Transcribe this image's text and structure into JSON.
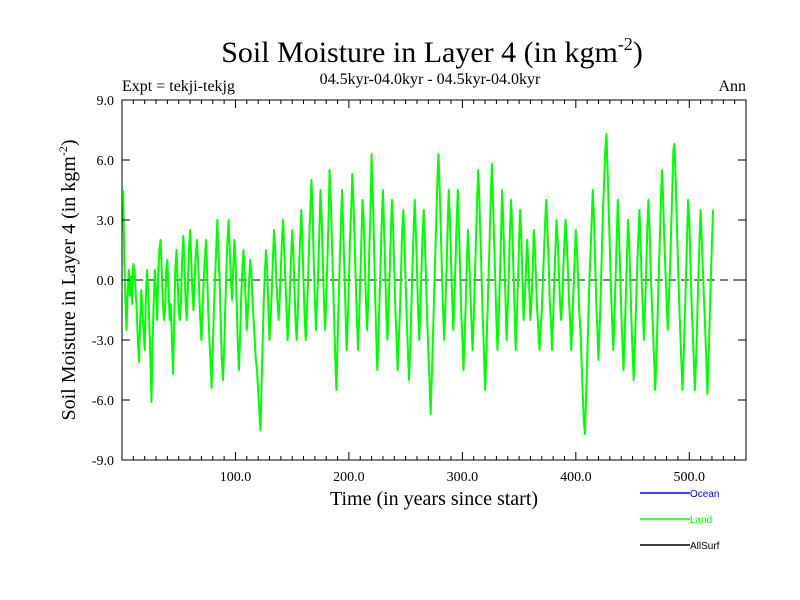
{
  "chart_data": {
    "type": "line",
    "title": "Soil Moisture in Layer 4 (in kgm",
    "title_sup": "-2",
    "title_close": ")",
    "subtitle_left": "Expt = tekji-tekjg",
    "subtitle_center": "04.5kyr-04.0kyr - 04.5kyr-04.0kyr",
    "subtitle_right": "Ann",
    "xlabel": "Time (in years since start)",
    "ylabel": "Soil Moisture in Layer 4 (in kgm",
    "ylabel_sup": "-2",
    "ylabel_close": ")",
    "xlim": [
      0,
      550
    ],
    "ylim": [
      -9,
      9
    ],
    "xticks": [
      100,
      200,
      300,
      400,
      500
    ],
    "xtick_labels": [
      "100.0",
      "200.0",
      "300.0",
      "400.0",
      "500.0"
    ],
    "yticks": [
      -9,
      -6,
      -3,
      0,
      3,
      6,
      9
    ],
    "ytick_labels": [
      "-9.0",
      "-6.0",
      "-3.0",
      "0.0",
      "3.0",
      "6.0",
      "9.0"
    ],
    "zero_line": true,
    "legend_placement": "bottom-right",
    "series": [
      {
        "name": "Ocean",
        "color": "#0000ff",
        "values": []
      },
      {
        "name": "Land",
        "color": "#00ff00",
        "x_start": 1,
        "x_step": 1,
        "values": [
          4.5,
          1.0,
          -1.0,
          -2.5,
          -0.5,
          0.5,
          -0.8,
          0.2,
          -1.2,
          0.8,
          0.5,
          -0.5,
          -1.5,
          -3.0,
          -4.1,
          -2.0,
          -0.5,
          -1.5,
          -2.5,
          -3.5,
          -1.0,
          0.5,
          -0.5,
          -2.0,
          -4.0,
          -6.1,
          -3.0,
          -1.0,
          0.5,
          -0.5,
          -2.0,
          0.5,
          1.5,
          2.0,
          0.5,
          -1.0,
          -2.0,
          -1.5,
          0.5,
          1.0,
          -0.5,
          -2.0,
          -1.2,
          -3.0,
          -4.7,
          -2.0,
          0.5,
          1.5,
          0.0,
          -1.5,
          -2.0,
          -1.0,
          1.0,
          2.2,
          1.0,
          -1.0,
          -2.0,
          -0.5,
          1.5,
          2.5,
          1.0,
          -0.5,
          -1.5,
          0.0,
          1.2,
          2.0,
          1.0,
          -0.5,
          -2.0,
          -3.0,
          -1.5,
          0.0,
          1.0,
          2.0,
          0.5,
          -1.5,
          -3.0,
          -4.0,
          -5.4,
          -3.5,
          -1.5,
          0.0,
          1.5,
          3.0,
          1.5,
          0.0,
          -2.0,
          -4.0,
          -5.0,
          -3.5,
          -1.5,
          0.5,
          2.0,
          3.0,
          1.5,
          0.0,
          -1.0,
          0.5,
          2.0,
          1.0,
          -1.0,
          -3.0,
          -4.5,
          -3.0,
          -1.0,
          0.5,
          1.5,
          0.5,
          -1.0,
          -2.5,
          -1.5,
          0.0,
          1.0,
          0.5,
          -1.0,
          -2.0,
          -3.0,
          -4.0,
          -4.5,
          -5.5,
          -6.5,
          -7.5,
          -5.5,
          -3.0,
          -1.0,
          0.5,
          1.5,
          0.5,
          -1.5,
          -3.0,
          -2.0,
          -0.5,
          1.0,
          2.5,
          1.5,
          0.0,
          -1.0,
          -2.0,
          -1.0,
          0.5,
          2.0,
          3.0,
          1.5,
          0.0,
          -1.5,
          -3.0,
          -2.0,
          -0.5,
          1.0,
          2.5,
          1.5,
          -0.5,
          -2.0,
          -3.0,
          -1.5,
          0.5,
          2.0,
          3.5,
          2.0,
          0.0,
          -2.0,
          -3.0,
          -1.5,
          0.0,
          2.0,
          3.5,
          5.0,
          3.5,
          1.0,
          -1.0,
          -2.5,
          -1.0,
          0.5,
          2.5,
          4.5,
          3.0,
          1.0,
          -1.0,
          -2.5,
          -1.0,
          1.0,
          3.0,
          5.5,
          4.0,
          2.0,
          0.0,
          -2.0,
          -4.0,
          -5.5,
          -3.0,
          -1.0,
          1.0,
          3.0,
          4.5,
          2.5,
          0.5,
          -1.5,
          -3.5,
          -2.0,
          0.0,
          2.0,
          3.5,
          5.3,
          4.0,
          2.0,
          0.0,
          -2.0,
          -3.5,
          -2.0,
          0.0,
          2.0,
          4.0,
          3.0,
          1.0,
          -1.0,
          -2.5,
          -1.0,
          1.5,
          3.5,
          6.3,
          4.5,
          2.0,
          -0.5,
          -2.5,
          -4.5,
          -3.0,
          -1.0,
          1.0,
          3.0,
          4.5,
          2.5,
          0.5,
          -1.5,
          -3.0,
          -1.5,
          0.5,
          2.5,
          4.0,
          2.5,
          0.5,
          -1.5,
          -3.0,
          -4.5,
          -3.0,
          -1.5,
          0.5,
          2.5,
          3.5,
          2.0,
          0.0,
          -2.0,
          -3.5,
          -5.0,
          -3.5,
          -1.5,
          0.5,
          2.5,
          4.0,
          2.5,
          0.5,
          -1.5,
          -3.0,
          -1.5,
          0.5,
          2.5,
          3.5,
          2.0,
          0.0,
          -2.0,
          -3.5,
          -5.0,
          -6.7,
          -5.0,
          -3.0,
          -1.0,
          1.0,
          3.0,
          5.0,
          6.3,
          4.5,
          2.5,
          0.5,
          -1.5,
          -3.0,
          -1.5,
          0.5,
          2.5,
          4.5,
          3.0,
          1.0,
          -1.0,
          -2.5,
          -1.0,
          1.0,
          3.0,
          4.5,
          2.5,
          0.5,
          -1.5,
          -3.0,
          -4.5,
          -3.0,
          -1.0,
          1.0,
          2.5,
          1.0,
          -0.5,
          -2.0,
          -3.5,
          -2.0,
          0.0,
          2.0,
          4.0,
          5.5,
          4.0,
          2.0,
          0.0,
          -2.0,
          -3.5,
          -5.5,
          -4.0,
          -2.0,
          0.0,
          2.0,
          4.0,
          5.8,
          4.0,
          2.0,
          0.0,
          -2.0,
          -3.5,
          -2.0,
          0.0,
          2.0,
          4.5,
          3.0,
          1.0,
          -1.0,
          -3.0,
          -1.5,
          0.5,
          2.5,
          4.0,
          2.5,
          0.5,
          -1.5,
          -3.5,
          -2.0,
          0.0,
          2.0,
          3.5,
          2.0,
          0.0,
          -2.0,
          -1.0,
          0.5,
          2.0,
          1.0,
          -0.5,
          -2.0,
          -1.0,
          0.5,
          2.5,
          1.5,
          0.0,
          -1.5,
          -2.5,
          -3.5,
          -2.5,
          -1.5,
          0.0,
          1.5,
          3.0,
          4.0,
          2.5,
          1.0,
          -1.0,
          -2.0,
          -3.5,
          -2.0,
          0.0,
          1.5,
          3.0,
          2.0,
          0.5,
          -1.0,
          -2.0,
          -1.0,
          0.5,
          2.0,
          3.0,
          2.0,
          0.5,
          -1.0,
          -2.0,
          -3.5,
          -2.0,
          -0.5,
          1.0,
          2.5,
          1.5,
          0.0,
          -1.5,
          -2.5,
          -4.0,
          -5.5,
          -7.0,
          -7.7,
          -6.0,
          -4.0,
          -2.0,
          0.0,
          1.5,
          3.0,
          4.5,
          3.0,
          1.0,
          -1.0,
          -2.5,
          -4.0,
          -2.5,
          -0.5,
          1.5,
          3.5,
          5.0,
          6.5,
          7.3,
          5.5,
          3.5,
          1.5,
          -0.5,
          -2.0,
          -3.5,
          -2.0,
          0.0,
          2.0,
          4.0,
          2.5,
          0.5,
          -1.5,
          -3.0,
          -4.5,
          -3.0,
          -1.0,
          1.0,
          3.0,
          2.0,
          0.0,
          -2.0,
          -3.5,
          -5.0,
          -3.5,
          -1.5,
          0.5,
          2.0,
          3.5,
          2.0,
          0.0,
          -1.5,
          -3.0,
          -1.5,
          0.5,
          2.5,
          4.0,
          2.5,
          0.5,
          -1.0,
          -2.5,
          -4.0,
          -5.5,
          -4.0,
          -2.0,
          0.0,
          2.0,
          4.0,
          5.5,
          4.0,
          2.0,
          0.5,
          -1.0,
          -2.5,
          -1.0,
          0.5,
          2.5,
          4.5,
          6.5,
          6.8,
          5.0,
          3.0,
          1.0,
          -1.0,
          -2.5,
          -4.0,
          -5.5,
          -4.0,
          -2.0,
          0.0,
          2.0,
          4.0,
          3.0,
          1.0,
          -1.0,
          -2.5,
          -4.0,
          -5.5,
          -4.0,
          -2.0,
          0.0,
          2.0,
          3.5,
          2.0,
          0.5,
          -1.0,
          -2.5,
          -4.0,
          -5.7,
          -4.0,
          -2.0,
          0.0,
          2.0,
          3.5
        ]
      },
      {
        "name": "AllSurf",
        "color": "#000000",
        "values": []
      }
    ]
  }
}
